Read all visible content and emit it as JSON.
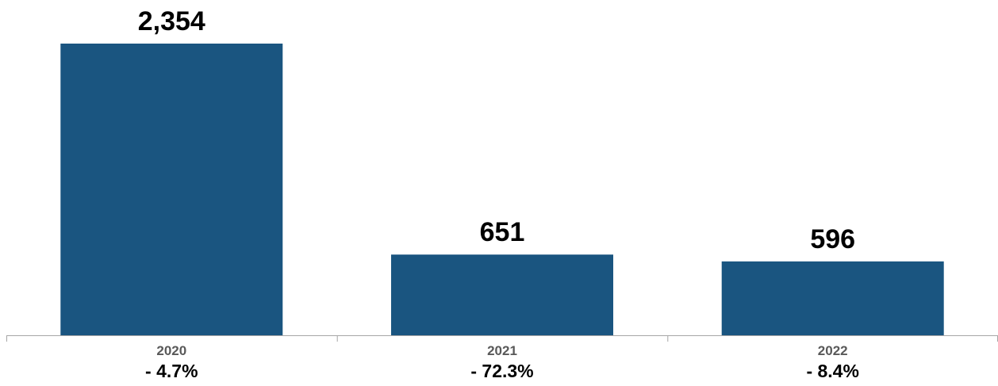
{
  "chart_data": {
    "type": "bar",
    "categories": [
      "2020",
      "2021",
      "2022"
    ],
    "values": [
      2354,
      651,
      596
    ],
    "value_labels": [
      "2,354",
      "651",
      "596"
    ],
    "changes": [
      "- 4.7%",
      "- 72.3%",
      "- 8.4%"
    ],
    "title": "",
    "xlabel": "",
    "ylabel": "",
    "ylim": [
      0,
      2354
    ],
    "grid": false,
    "legend": "none",
    "bar_color": "#1a5580",
    "axis_color": "#a6a6a6",
    "category_label_color": "#595959"
  }
}
